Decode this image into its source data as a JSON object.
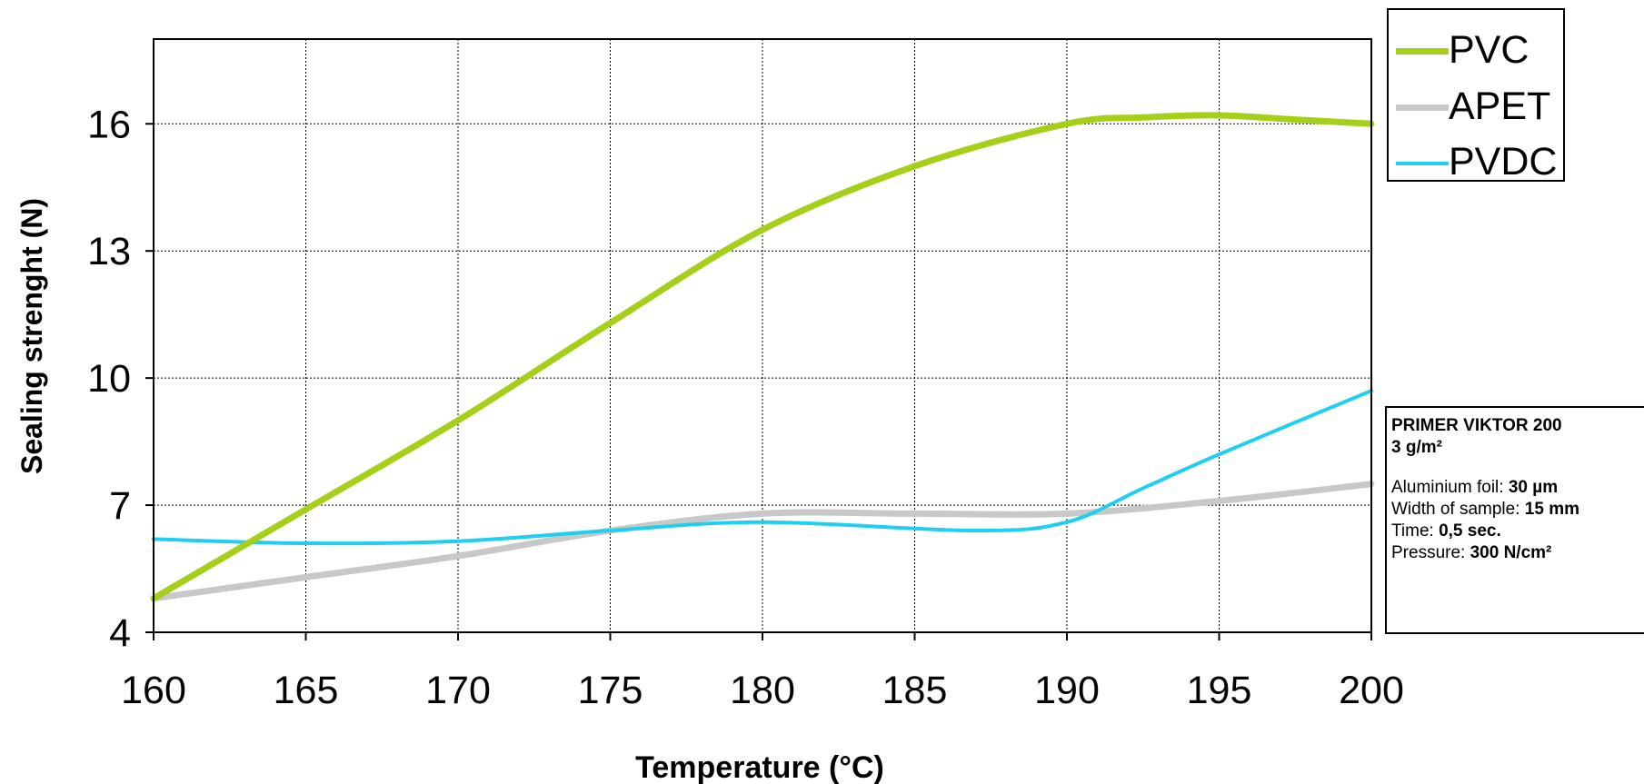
{
  "chart_data": {
    "type": "line",
    "title": "",
    "xlabel": "Temperature (°C)",
    "ylabel": "Sealing strenght (N)",
    "xlim": [
      160,
      200
    ],
    "ylim": [
      4,
      18
    ],
    "x_ticks": [
      160,
      165,
      170,
      175,
      180,
      185,
      190,
      195,
      200
    ],
    "y_ticks": [
      4,
      7,
      10,
      13,
      16
    ],
    "grid": true,
    "legend_position": "top-right",
    "series": [
      {
        "name": "PVC",
        "color": "#a6cf1a",
        "x": [
          160,
          165,
          170,
          175,
          180,
          185,
          190,
          192.5,
          195,
          197.5,
          200
        ],
        "y": [
          4.8,
          6.9,
          9.0,
          11.3,
          13.5,
          15.0,
          16.0,
          16.15,
          16.2,
          16.1,
          16.0
        ]
      },
      {
        "name": "APET",
        "color": "#c8c8c8",
        "x": [
          160,
          165,
          170,
          175,
          180,
          185,
          190,
          195,
          200
        ],
        "y": [
          4.8,
          5.3,
          5.8,
          6.4,
          6.8,
          6.8,
          6.8,
          7.1,
          7.5
        ]
      },
      {
        "name": "PVDC",
        "color": "#1ecff0",
        "x": [
          160,
          165,
          170,
          175,
          180,
          187,
          190,
          192.5,
          195,
          200
        ],
        "y": [
          6.2,
          6.1,
          6.15,
          6.4,
          6.6,
          6.4,
          6.6,
          7.4,
          8.2,
          9.7
        ]
      }
    ]
  },
  "info_box": {
    "title_line1": "PRIMER VIKTOR 200",
    "title_line2": "3 g/m²",
    "foil_label": "Aluminium foil: ",
    "foil_value": "30 µm",
    "width_label": "Width of sample: ",
    "width_value": "15 mm",
    "time_label": "Time: ",
    "time_value": "0,5 sec.",
    "pressure_label": "Pressure: ",
    "pressure_value": "300 N/cm²"
  }
}
